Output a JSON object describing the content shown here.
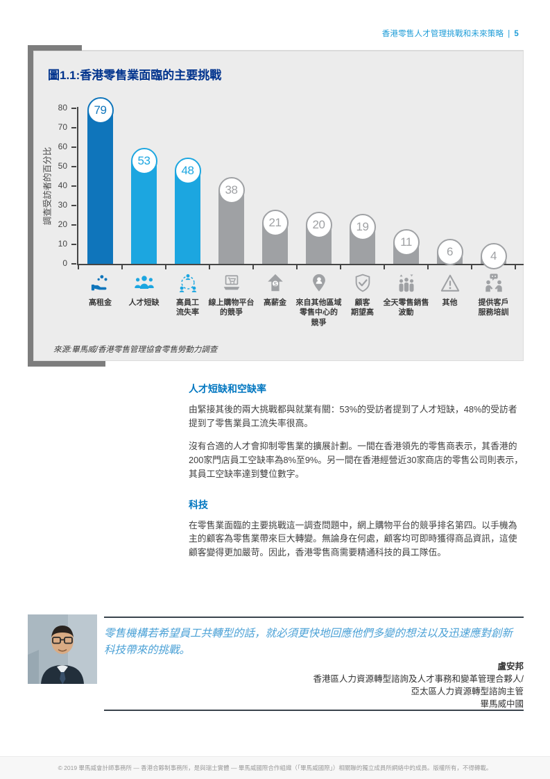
{
  "header": {
    "doc_title": "香港零售人才管理挑戰和未來策略",
    "divider": "|",
    "page_number": "5"
  },
  "chart": {
    "title": "圖1.1:香港零售業面臨的主要挑戰",
    "source": "來源:畢馬威/香港零售管理協會零售勞動力調查"
  },
  "chart_data": {
    "type": "bar",
    "title": "圖1.1:香港零售業面臨的主要挑戰",
    "xlabel": "",
    "ylabel": "調查受訪者的百分比",
    "unit": "%",
    "ylim": [
      0,
      80
    ],
    "yticks": [
      0,
      10,
      20,
      30,
      40,
      50,
      60,
      70,
      80
    ],
    "grid": false,
    "legend_position": "none",
    "categories": [
      "高租金",
      "人才短缺",
      "高員工流失率",
      "線上購物平台的競爭",
      "高薪金",
      "來自其他區域零售中心的競爭",
      "顧客期望高",
      "全天零售銷售波動",
      "其他",
      "提供客戶服務培訓"
    ],
    "values": [
      79,
      53,
      48,
      38,
      21,
      20,
      19,
      11,
      6,
      4
    ],
    "bars": [
      {
        "label_display": "高租金",
        "value": 79,
        "color": "#0f75bb",
        "icon": "hand-coins-icon"
      },
      {
        "label_display": "人才短缺",
        "value": 53,
        "color": "#1ca6e0",
        "icon": "people-group-icon"
      },
      {
        "label_display": "高員工\n流失率",
        "value": 48,
        "color": "#1ca6e0",
        "icon": "staff-turnover-icon"
      },
      {
        "label_display": "線上購物平台\n的競爭",
        "value": 38,
        "color": "#9fa1a4",
        "icon": "online-shopping-icon"
      },
      {
        "label_display": "高薪金",
        "value": 21,
        "color": "#9fa1a4",
        "icon": "salary-arrow-icon"
      },
      {
        "label_display": "來自其他區域\n零售中心的\n競爭",
        "value": 20,
        "color": "#9fa1a4",
        "icon": "location-pin-icon"
      },
      {
        "label_display": "顧客\n期望高",
        "value": 19,
        "color": "#9fa1a4",
        "icon": "shield-check-icon"
      },
      {
        "label_display": "全天零售銷售\n波動",
        "value": 11,
        "color": "#9fa1a4",
        "icon": "people-fluctuation-icon"
      },
      {
        "label_display": "其他",
        "value": 6,
        "color": "#9fa1a4",
        "icon": "warning-triangle-icon"
      },
      {
        "label_display": "提供客戶\n服務培訓",
        "value": 4,
        "color": "#9fa1a4",
        "icon": "customer-service-training-icon"
      }
    ]
  },
  "body": {
    "sections": [
      {
        "heading": "人才短缺和空缺率",
        "paragraphs": [
          "由緊接其後的兩大挑戰都與就業有關：53%的受訪者提到了人才短缺，48%的受訪者提到了零售業員工流失率很高。",
          "沒有合適的人才會抑制零售業的擴展計劃。一間在香港領先的零售商表示，其香港的200家門店員工空缺率為8%至9%。另一間在香港經營近30家商店的零售公司則表示，其員工空缺率達到雙位數字。"
        ]
      },
      {
        "heading": "科技",
        "paragraphs": [
          "在零售業面臨的主要挑戰這一調查問題中，網上購物平台的競爭排名第四。以手機為主的顧客為零售業帶來巨大轉變。無論身在何處，顧客均可即時獲得商品資訊，這使顧客變得更加嚴苛。因此，香港零售商需要精通科技的員工隊伍。"
        ]
      }
    ]
  },
  "quote": {
    "text": "零售機構若希望員工共轉型的話，就必須更快地回應他們多變的想法以及迅速應對創新科技帶來的挑戰。",
    "name": "盧安邦",
    "roles": [
      "香港區人力資源轉型諮詢及人才事務和變革管理合夥人/",
      "亞太區人力資源轉型諮詢主管"
    ],
    "company": "畢馬威中國",
    "photo_alt": "盧安邦照片"
  },
  "footer": {
    "text": "© 2019 畢馬威會計師事務所 — 香港合夥制事務所，是與瑞士實體 — 畢馬威國際合作組織（「畢馬威國際」）相關聯的獨立成員所網絡中的成員。版權所有，不得轉載。"
  },
  "colors": {
    "title_navy": "#00338d",
    "header_blue": "#1e9cd7",
    "heading_blue": "#0076c0",
    "quote_blue": "#4ba1d6",
    "bar_dark_blue": "#0f75bb",
    "bar_light_blue": "#1ca6e0",
    "bar_gray": "#9fa1a4",
    "card_bg": "#ececec",
    "accent_gray": "#7d7d7d"
  }
}
